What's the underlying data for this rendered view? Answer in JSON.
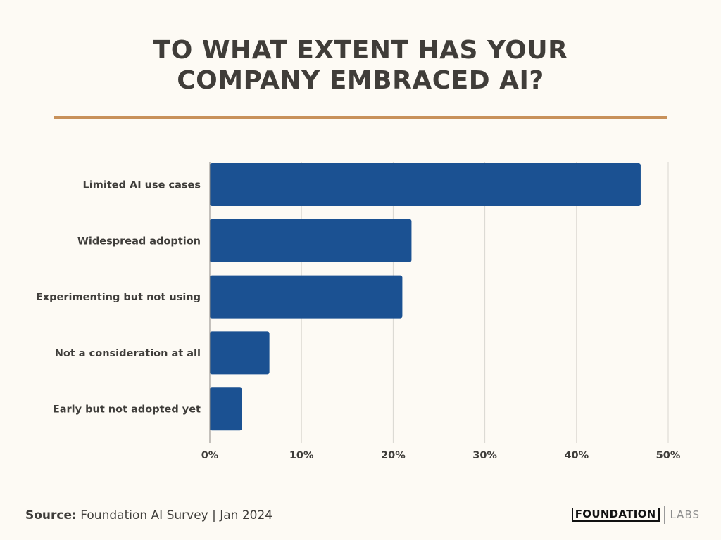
{
  "header": {
    "title_line1": "TO WHAT EXTENT HAS YOUR",
    "title_line2": "COMPANY EMBRACED AI?"
  },
  "colors": {
    "background": "#fdfaf4",
    "bar": "#1b5192",
    "rule": "#c8915a",
    "text": "#3f3d3a",
    "grid": "#d9d6d0"
  },
  "chart_data": {
    "type": "bar",
    "orientation": "horizontal",
    "title": "TO WHAT EXTENT HAS YOUR COMPANY EMBRACED AI?",
    "categories": [
      "Limited AI use cases",
      "Widespread adoption",
      "Experimenting but not using",
      "Not a consideration at all",
      "Early but not adopted yet"
    ],
    "values": [
      47,
      22,
      21,
      6.5,
      3.5
    ],
    "xlim": [
      0,
      50
    ],
    "xticks": [
      0,
      10,
      20,
      30,
      40,
      50
    ],
    "xtick_labels": [
      "0%",
      "10%",
      "20%",
      "30%",
      "40%",
      "50%"
    ],
    "xlabel": "",
    "ylabel": "",
    "grid": "vertical"
  },
  "footer": {
    "source_label": "Source:",
    "source_text": " Foundation AI Survey | Jan 2024",
    "logo_main": "FOUNDATION",
    "logo_sub": "LABS"
  }
}
